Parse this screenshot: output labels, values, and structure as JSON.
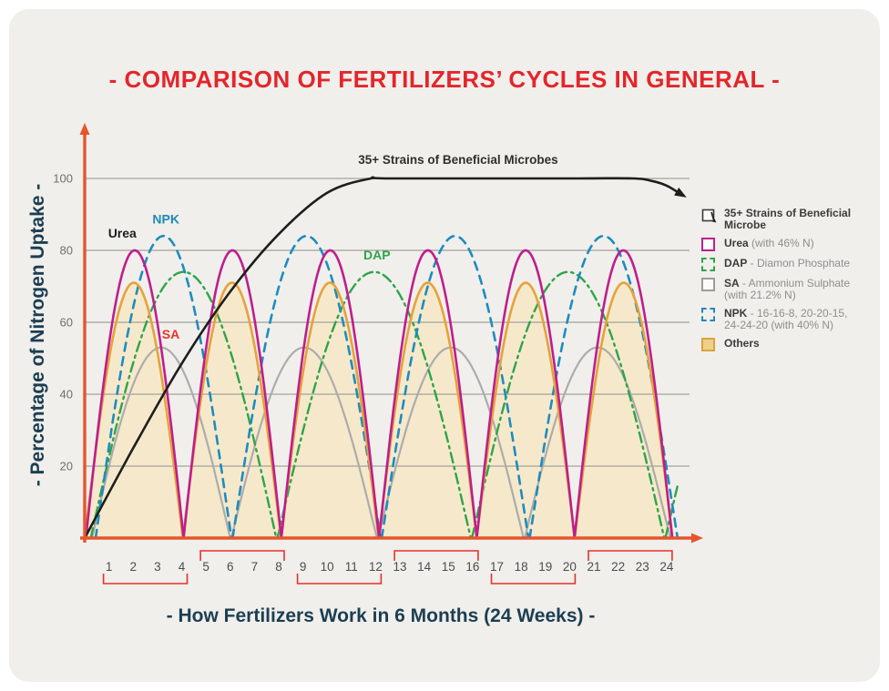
{
  "title": "- COMPARISON OF FERTILIZERS’ CYCLES IN GENERAL -",
  "y_axis": {
    "label": "- Percentage of Nitrogen Uptake -"
  },
  "x_axis": {
    "label": "- How Fertilizers Work in 6 Months (24 Weeks) -"
  },
  "legend": {
    "items": [
      {
        "key": "microbes",
        "name": "35+ Strains of Beneficial Microbe",
        "desc": ""
      },
      {
        "key": "urea",
        "name": "Urea",
        "desc": " (with 46% N)"
      },
      {
        "key": "dap",
        "name": "DAP",
        "desc": " - Diamon Phosphate"
      },
      {
        "key": "sa",
        "name": "SA",
        "desc": " - Ammonium Sulphate (with 21.2% N)"
      },
      {
        "key": "npk",
        "name": "NPK",
        "desc": " - 16-16-8, 20-20-15, 24-24-20 (with 40% N)"
      },
      {
        "key": "others",
        "name": "Others",
        "desc": ""
      }
    ]
  },
  "colors": {
    "title_red": "#E3262B",
    "teal_text": "#1C3E52",
    "axis_orange": "#E6552C",
    "bracket_red": "#E8312A",
    "panel_bg": "#F0EFEB",
    "gridline": "#A3A29C",
    "tick_gray": "#6F6F6F",
    "week_gray": "#4C4C4C",
    "legend_dark": "#3B3B3B",
    "legend_gray": "#8E8E8E"
  },
  "chart_data": {
    "type": "line",
    "title": "- COMPARISON OF FERTILIZERS’ CYCLES IN GENERAL -",
    "xlabel": "- How Fertilizers Work in 6 Months (24 Weeks) -",
    "ylabel": "- Percentage of Nitrogen Uptake -",
    "x_unit": "weeks",
    "x_range": [
      0,
      24
    ],
    "ylim": [
      0,
      100
    ],
    "grid": true,
    "legend_position": "right",
    "x_clip": 24.45,
    "y_ticks": [
      20,
      40,
      60,
      80,
      100
    ],
    "x_ticks": [
      1,
      2,
      3,
      4,
      5,
      6,
      7,
      8,
      9,
      10,
      11,
      12,
      13,
      14,
      15,
      16,
      17,
      18,
      19,
      20,
      21,
      22,
      23,
      24
    ],
    "week_groups": [
      {
        "from": 1,
        "to": 4,
        "bracket": "below"
      },
      {
        "from": 5,
        "to": 8,
        "bracket": "above"
      },
      {
        "from": 9,
        "to": 12,
        "bracket": "below"
      },
      {
        "from": 13,
        "to": 16,
        "bracket": "above"
      },
      {
        "from": 17,
        "to": 20,
        "bracket": "below"
      },
      {
        "from": 21,
        "to": 24,
        "bracket": "above"
      }
    ],
    "annotation": {
      "text": "35+ Strains of Beneficial Microbes",
      "x_week": 15.4,
      "y_val": 104,
      "color": "#2F2F2F"
    },
    "curve_labels": [
      {
        "text": "Urea",
        "color": "#1E1E1E",
        "x_week": 1.55,
        "y_val": 83.5
      },
      {
        "text": "NPK",
        "color": "#2287B8",
        "x_week": 3.35,
        "y_val": 87.5
      },
      {
        "text": "SA",
        "color": "#E8312A",
        "x_week": 3.55,
        "y_val": 55.5
      },
      {
        "text": "DAP",
        "color": "#2EA44A",
        "x_week": 12.05,
        "y_val": 77.5
      }
    ],
    "series": [
      {
        "name": "SA - Ammonium Sulphate",
        "color": "#ACACAC",
        "style": "solid",
        "width": 2.2,
        "peak": 53,
        "cycle_weeks": 6,
        "peak_weeks": [
          3.1,
          9.1,
          15.1,
          21.1
        ],
        "arcs": [
          [
            0.3,
            6.0
          ],
          [
            6.05,
            12.05
          ],
          [
            12.1,
            18.1
          ],
          [
            18.15,
            24.15
          ]
        ]
      },
      {
        "name": "DAP - Diamon Phosphate",
        "color": "#2EA44A",
        "style": "dashdot",
        "width": 2.4,
        "peak": 74,
        "cycle_weeks": 8,
        "peak_weeks": [
          4.0,
          11.9,
          19.9
        ],
        "arcs": [
          [
            0.25,
            7.9
          ],
          [
            7.95,
            15.92
          ],
          [
            15.97,
            23.9
          ],
          [
            23.95,
            31.9
          ]
        ]
      },
      {
        "name": "NPK",
        "color": "#1E8CBE",
        "style": "dashed",
        "width": 2.6,
        "peak": 84,
        "cycle_weeks": 6,
        "peak_weeks": [
          3.25,
          9.15,
          15.25,
          21.4
        ],
        "arcs": [
          [
            0.45,
            6.05
          ],
          [
            6.1,
            12.2
          ],
          [
            12.25,
            18.3
          ],
          [
            18.35,
            24.45
          ]
        ]
      },
      {
        "name": "Others",
        "color": "#E5A23B",
        "style": "solid",
        "width": 2.6,
        "peak": 71,
        "cycle_weeks": 4,
        "peak_weeks": [
          2.0,
          6.1,
          10.1,
          14.1,
          18.2,
          22.2
        ],
        "fill": "#F6E9CB",
        "arcs": [
          [
            0.0,
            4.05
          ],
          [
            4.05,
            8.1
          ],
          [
            8.1,
            12.12
          ],
          [
            12.12,
            16.17
          ],
          [
            16.17,
            20.21
          ],
          [
            20.21,
            24.25
          ]
        ]
      },
      {
        "name": "Urea",
        "color": "#BE1E8C",
        "style": "solid",
        "width": 2.6,
        "peak": 80,
        "cycle_weeks": 4,
        "peak_weeks": [
          2.07,
          6.1,
          10.13,
          14.16,
          18.19,
          22.22
        ],
        "arcs": [
          [
            0.05,
            4.08
          ],
          [
            4.08,
            8.11
          ],
          [
            8.11,
            12.14
          ],
          [
            12.14,
            16.17
          ],
          [
            16.17,
            20.2
          ],
          [
            20.2,
            24.23
          ]
        ]
      },
      {
        "name": "35+ Strains of Beneficial Microbes",
        "color": "#1E1E1E",
        "style": "solid",
        "width": 2.6,
        "arrow_end": true,
        "points": [
          [
            0,
            0
          ],
          [
            2,
            25
          ],
          [
            4,
            48.5
          ],
          [
            6,
            68.5
          ],
          [
            8,
            84.5
          ],
          [
            10,
            96
          ],
          [
            11.8,
            100
          ],
          [
            12.6,
            100
          ],
          [
            20,
            100
          ],
          [
            22.6,
            100
          ],
          [
            23.4,
            99.3
          ],
          [
            24.0,
            98.0
          ],
          [
            24.5,
            96.0
          ]
        ]
      }
    ]
  }
}
